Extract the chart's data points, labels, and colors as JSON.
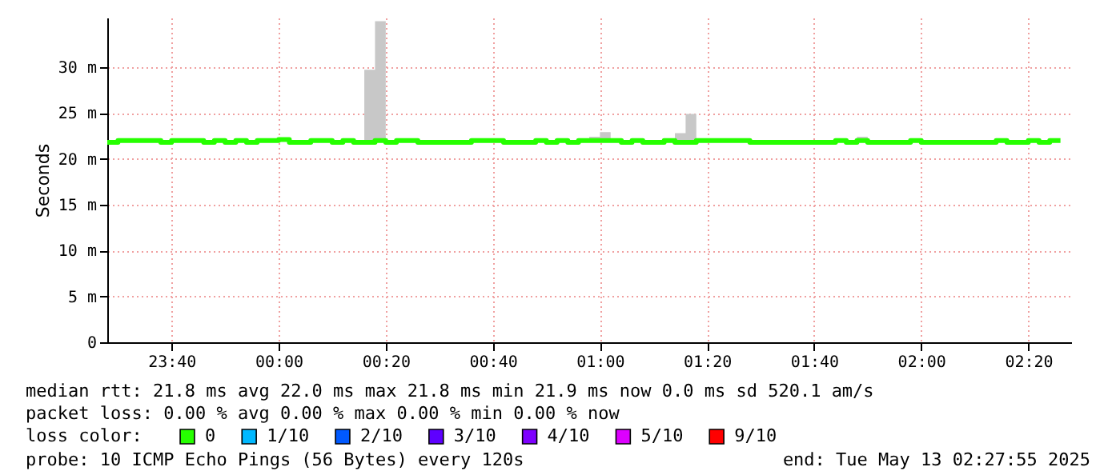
{
  "chart_data": {
    "type": "step",
    "ylabel": "Seconds",
    "legend_title": "loss color:",
    "legend": "bottom",
    "grid": true,
    "line_style": "solid",
    "marker": "none",
    "xlim": [
      "2025-05-12T23:28",
      "2025-05-13T02:28"
    ],
    "xticks": [
      {
        "value": "2025-05-12T23:40",
        "label": "23:40"
      },
      {
        "value": "2025-05-13T00:00",
        "label": "00:00"
      },
      {
        "value": "2025-05-13T00:20",
        "label": "00:20"
      },
      {
        "value": "2025-05-13T00:40",
        "label": "00:40"
      },
      {
        "value": "2025-05-13T01:00",
        "label": "01:00"
      },
      {
        "value": "2025-05-13T01:20",
        "label": "01:20"
      },
      {
        "value": "2025-05-13T01:40",
        "label": "01:40"
      },
      {
        "value": "2025-05-13T02:00",
        "label": "02:00"
      },
      {
        "value": "2025-05-13T02:20",
        "label": "02:20"
      }
    ],
    "ylim": [
      0,
      35.4
    ],
    "yticks": [
      0,
      {
        "value": 5,
        "label": "5 m"
      },
      {
        "value": 10,
        "label": "10 m"
      },
      {
        "value": 15,
        "label": "15 m"
      },
      {
        "value": 20,
        "label": "20 m"
      },
      {
        "value": 25,
        "label": "25 m"
      },
      {
        "value": 30,
        "label": "30 m"
      }
    ],
    "series": [
      {
        "name": "0",
        "color": "#26ff00",
        "x": [
          "2025-05-12T23:28",
          "2025-05-12T23:30",
          "2025-05-12T23:38",
          "2025-05-12T23:40",
          "2025-05-12T23:46",
          "2025-05-12T23:48",
          "2025-05-12T23:50",
          "2025-05-12T23:52",
          "2025-05-12T23:54",
          "2025-05-12T23:56",
          "2025-05-13T00:00",
          "2025-05-13T00:02",
          "2025-05-13T00:06",
          "2025-05-13T00:08",
          "2025-05-13T00:10",
          "2025-05-13T00:12",
          "2025-05-13T00:14",
          "2025-05-13T00:16",
          "2025-05-13T00:18",
          "2025-05-13T00:20",
          "2025-05-13T00:22",
          "2025-05-13T00:26",
          "2025-05-13T00:36",
          "2025-05-13T00:42",
          "2025-05-13T00:48",
          "2025-05-13T00:50",
          "2025-05-13T00:52",
          "2025-05-13T00:54",
          "2025-05-13T00:56",
          "2025-05-13T00:58",
          "2025-05-13T01:00",
          "2025-05-13T01:02",
          "2025-05-13T01:04",
          "2025-05-13T01:06",
          "2025-05-13T01:08",
          "2025-05-13T01:12",
          "2025-05-13T01:14",
          "2025-05-13T01:16",
          "2025-05-13T01:18",
          "2025-05-13T01:28",
          "2025-05-13T01:44",
          "2025-05-13T01:46",
          "2025-05-13T01:48",
          "2025-05-13T01:50",
          "2025-05-13T01:58",
          "2025-05-13T02:00",
          "2025-05-13T02:14",
          "2025-05-13T02:16",
          "2025-05-13T02:20",
          "2025-05-13T02:22",
          "2025-05-13T02:24",
          "2025-05-13T02:26"
        ],
        "values": [
          21.8,
          22.0,
          21.8,
          22.0,
          21.8,
          22.0,
          21.8,
          22.0,
          21.8,
          22.0,
          22.1,
          21.8,
          22.0,
          22.0,
          21.8,
          22.0,
          21.8,
          21.8,
          22.0,
          21.8,
          22.0,
          21.8,
          22.0,
          21.8,
          22.0,
          21.8,
          22.0,
          21.8,
          22.0,
          22.0,
          22.0,
          22.0,
          21.8,
          22.0,
          21.8,
          22.0,
          21.8,
          21.8,
          22.0,
          21.8,
          22.0,
          21.8,
          22.0,
          21.8,
          22.0,
          21.8,
          22.0,
          21.8,
          22.0,
          21.8,
          22.0,
          22.0
        ],
        "lower": [
          21.8,
          22.0,
          21.8,
          22.0,
          21.8,
          22.0,
          21.8,
          22.0,
          21.8,
          22.0,
          22.1,
          21.8,
          22.0,
          22.0,
          21.8,
          22.0,
          21.8,
          21.8,
          22.0,
          21.8,
          22.0,
          21.8,
          22.0,
          21.8,
          22.0,
          21.8,
          22.0,
          21.8,
          22.0,
          22.0,
          22.0,
          22.0,
          21.8,
          22.0,
          21.8,
          22.0,
          21.8,
          21.8,
          22.0,
          21.8,
          22.0,
          21.8,
          22.0,
          21.8,
          22.0,
          21.8,
          22.0,
          21.8,
          22.0,
          21.8,
          22.0,
          22.0
        ],
        "upper": [
          21.8,
          22.0,
          21.8,
          22.0,
          21.8,
          22.0,
          21.8,
          22.0,
          21.8,
          22.0,
          22.1,
          21.8,
          22.0,
          22.1,
          21.8,
          22.0,
          21.8,
          29.7,
          35.0,
          21.8,
          22.0,
          21.8,
          22.0,
          21.8,
          22.0,
          21.8,
          22.0,
          21.8,
          22.2,
          22.4,
          22.9,
          22.0,
          21.8,
          22.0,
          21.8,
          22.2,
          22.8,
          24.9,
          22.0,
          21.8,
          22.0,
          21.8,
          22.4,
          21.8,
          22.0,
          21.8,
          22.0,
          21.8,
          22.0,
          21.8,
          22.0,
          22.0
        ]
      },
      {
        "name": "1/10",
        "color": "#00b8ff"
      },
      {
        "name": "2/10",
        "color": "#0059ff"
      },
      {
        "name": "3/10",
        "color": "#5e00ff"
      },
      {
        "name": "4/10",
        "color": "#7e00ff"
      },
      {
        "name": "5/10",
        "color": "#dd00ff"
      },
      {
        "name": "9/10",
        "color": "#ff0000"
      }
    ],
    "annotations": [
      "median rtt:  21.8 ms avg  22.0 ms max  21.8 ms min  21.9 ms now  0.0 ms sd  520.1   am/s",
      "packet loss: 0.00 % avg  0.00 % max  0.00 % min  0.00 % now",
      "probe:       10 ICMP Echo Pings (56 Bytes) every 120s",
      "end: Tue May 13 02:27:55 2025"
    ]
  }
}
